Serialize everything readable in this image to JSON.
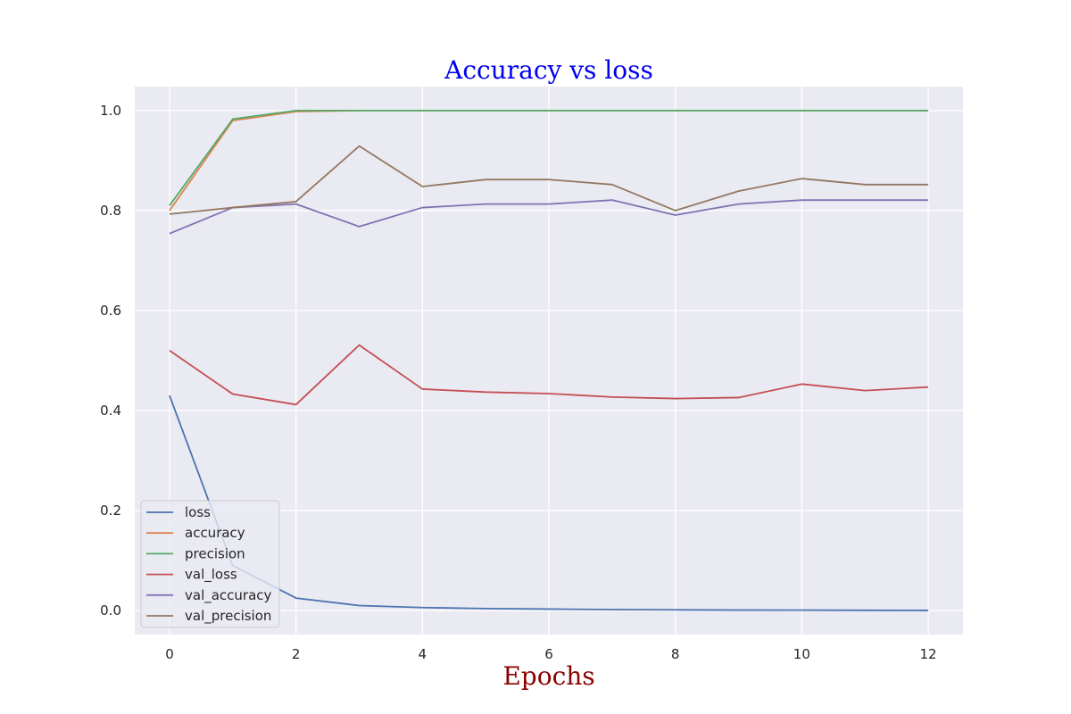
{
  "chart_data": {
    "type": "line",
    "title": "Accuracy vs loss",
    "title_color": "#0000ee",
    "xlabel": "Epochs",
    "xlabel_color": "#8b0000",
    "ylabel": "",
    "x": [
      0,
      1,
      2,
      3,
      4,
      5,
      6,
      7,
      8,
      9,
      10,
      11,
      12
    ],
    "xlim": [
      -0.55,
      12.55
    ],
    "ylim": [
      -0.048,
      1.048
    ],
    "x_ticks": [
      0,
      2,
      4,
      6,
      8,
      10,
      12
    ],
    "x_tick_labels": [
      "0",
      "2",
      "4",
      "6",
      "8",
      "10",
      "12"
    ],
    "y_ticks": [
      0.0,
      0.2,
      0.4,
      0.6,
      0.8,
      1.0
    ],
    "y_tick_labels": [
      "0.0",
      "0.2",
      "0.4",
      "0.6",
      "0.8",
      "1.0"
    ],
    "grid": true,
    "background": "#eaeaf2",
    "legend_position": "lower-left",
    "series": [
      {
        "name": "loss",
        "color": "#4c72b0",
        "values": [
          0.43,
          0.09,
          0.025,
          0.01,
          0.006,
          0.004,
          0.003,
          0.002,
          0.0015,
          0.001,
          0.0008,
          0.0005,
          0.0003
        ]
      },
      {
        "name": "accuracy",
        "color": "#dd8452",
        "values": [
          0.8,
          0.98,
          0.998,
          1.0,
          1.0,
          1.0,
          1.0,
          1.0,
          1.0,
          1.0,
          1.0,
          1.0,
          1.0
        ]
      },
      {
        "name": "precision",
        "color": "#55a868",
        "values": [
          0.81,
          0.983,
          1.0,
          1.0,
          1.0,
          1.0,
          1.0,
          1.0,
          1.0,
          1.0,
          1.0,
          1.0,
          1.0
        ]
      },
      {
        "name": "val_loss",
        "color": "#c44e52",
        "values": [
          0.52,
          0.433,
          0.412,
          0.531,
          0.443,
          0.437,
          0.434,
          0.427,
          0.424,
          0.426,
          0.453,
          0.44,
          0.447
        ]
      },
      {
        "name": "val_accuracy",
        "color": "#8172b3",
        "values": [
          0.754,
          0.806,
          0.813,
          0.768,
          0.806,
          0.813,
          0.813,
          0.821,
          0.791,
          0.813,
          0.821,
          0.821,
          0.821
        ]
      },
      {
        "name": "val_precision",
        "color": "#937860",
        "values": [
          0.793,
          0.806,
          0.818,
          0.929,
          0.848,
          0.862,
          0.862,
          0.852,
          0.8,
          0.839,
          0.864,
          0.852,
          0.852
        ]
      }
    ]
  }
}
